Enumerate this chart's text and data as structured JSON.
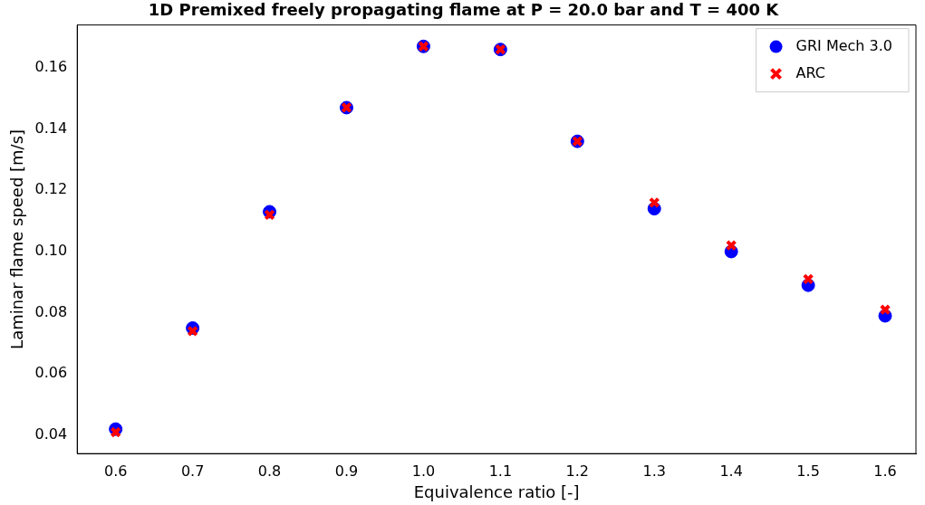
{
  "chart_data": {
    "type": "scatter",
    "title": "1D Premixed freely propagating flame at P = 20.0 bar and T = 400 K",
    "xlabel": "Equivalence ratio [-]",
    "ylabel": "Laminar flame speed [m/s]",
    "x": [
      0.6,
      0.7,
      0.8,
      0.9,
      1.0,
      1.1,
      1.2,
      1.3,
      1.4,
      1.5,
      1.6
    ],
    "series": [
      {
        "name": "GRI Mech 3.0",
        "color": "#0000ff",
        "marker": "circle",
        "values": [
          0.042,
          0.075,
          0.113,
          0.147,
          0.167,
          0.166,
          0.136,
          0.114,
          0.1,
          0.089,
          0.079
        ]
      },
      {
        "name": "ARC",
        "color": "#ff0000",
        "marker": "cross",
        "values": [
          0.041,
          0.074,
          0.112,
          0.147,
          0.167,
          0.166,
          0.136,
          0.116,
          0.102,
          0.091,
          0.081
        ]
      }
    ],
    "xlim": [
      0.55,
      1.64
    ],
    "ylim": [
      0.034,
      0.174
    ],
    "xticks": [
      {
        "value": 0.6,
        "label": "0.6"
      },
      {
        "value": 0.7,
        "label": "0.7"
      },
      {
        "value": 0.8,
        "label": "0.8"
      },
      {
        "value": 0.9,
        "label": "0.9"
      },
      {
        "value": 1.0,
        "label": "1.0"
      },
      {
        "value": 1.1,
        "label": "1.1"
      },
      {
        "value": 1.2,
        "label": "1.2"
      },
      {
        "value": 1.3,
        "label": "1.3"
      },
      {
        "value": 1.4,
        "label": "1.4"
      },
      {
        "value": 1.5,
        "label": "1.5"
      },
      {
        "value": 1.6,
        "label": "1.6"
      }
    ],
    "yticks": [
      {
        "value": 0.04,
        "label": "0.04"
      },
      {
        "value": 0.06,
        "label": "0.06"
      },
      {
        "value": 0.08,
        "label": "0.08"
      },
      {
        "value": 0.1,
        "label": "0.10"
      },
      {
        "value": 0.12,
        "label": "0.12"
      },
      {
        "value": 0.14,
        "label": "0.14"
      },
      {
        "value": 0.16,
        "label": "0.16"
      }
    ],
    "grid": false,
    "legend": "top right"
  }
}
